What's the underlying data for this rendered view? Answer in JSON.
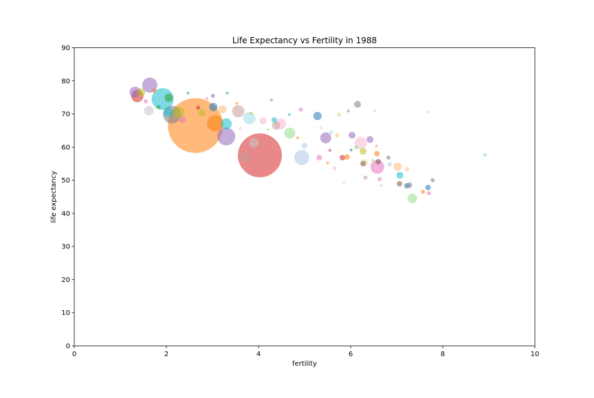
{
  "chart_data": {
    "type": "scatter",
    "title": "Life Expectancy vs Fertility in 1988",
    "xlabel": "fertility",
    "ylabel": "life expectancy",
    "xlim": [
      0,
      10
    ],
    "ylim": [
      0,
      90
    ],
    "xticks": [
      "0",
      "2",
      "4",
      "6",
      "8",
      "10"
    ],
    "yticks": [
      "0",
      "10",
      "20",
      "30",
      "40",
      "50",
      "60",
      "70",
      "80",
      "90"
    ],
    "grid": false,
    "legend": "none",
    "colors": [
      "#1f77b4",
      "#ff7f0e",
      "#2ca02c",
      "#d62728",
      "#9467bd",
      "#8c564b",
      "#e377c2",
      "#7f7f7f",
      "#bcbd22",
      "#17becf"
    ],
    "points": [
      {
        "x": 2.63,
        "y": 66.5,
        "size": 40,
        "color": "#ff7f0e"
      },
      {
        "x": 4.03,
        "y": 57.5,
        "size": 32,
        "color": "#d62728"
      },
      {
        "x": 1.92,
        "y": 74.5,
        "size": 16,
        "color": "#17becf"
      },
      {
        "x": 3.3,
        "y": 63.2,
        "size": 13,
        "color": "#9467bd"
      },
      {
        "x": 2.12,
        "y": 69.8,
        "size": 13,
        "color": "#7f7f7f"
      },
      {
        "x": 3.06,
        "y": 67.2,
        "size": 12,
        "color": "#ff7f0e"
      },
      {
        "x": 4.94,
        "y": 56.8,
        "size": 11,
        "color": "#aec7e8"
      },
      {
        "x": 6.58,
        "y": 54.0,
        "size": 10,
        "color": "#e377c2"
      },
      {
        "x": 1.64,
        "y": 78.7,
        "size": 11,
        "color": "#9467bd"
      },
      {
        "x": 6.22,
        "y": 61.2,
        "size": 9,
        "color": "#f7b6d2"
      },
      {
        "x": 1.37,
        "y": 75.4,
        "size": 9,
        "color": "#d62728"
      },
      {
        "x": 3.8,
        "y": 68.7,
        "size": 9,
        "color": "#9edae5"
      },
      {
        "x": 3.56,
        "y": 70.8,
        "size": 9,
        "color": "#c49c94"
      },
      {
        "x": 1.32,
        "y": 76.6,
        "size": 8,
        "color": "#9467bd"
      },
      {
        "x": 2.27,
        "y": 70.5,
        "size": 8,
        "color": "#bcbd22"
      },
      {
        "x": 3.3,
        "y": 67.0,
        "size": 8,
        "color": "#17becf"
      },
      {
        "x": 4.68,
        "y": 64.2,
        "size": 8,
        "color": "#98df8a"
      },
      {
        "x": 4.48,
        "y": 67.0,
        "size": 8,
        "color": "#f7b6d2"
      },
      {
        "x": 5.46,
        "y": 62.8,
        "size": 8,
        "color": "#9467bd"
      },
      {
        "x": 7.34,
        "y": 44.5,
        "size": 7,
        "color": "#98df8a"
      },
      {
        "x": 2.04,
        "y": 70.5,
        "size": 7,
        "color": "#17becf"
      },
      {
        "x": 1.62,
        "y": 71.0,
        "size": 7,
        "color": "#c7c7c7"
      },
      {
        "x": 3.9,
        "y": 61.3,
        "size": 7,
        "color": "#c7c7c7"
      },
      {
        "x": 3.7,
        "y": 57.0,
        "size": 7,
        "color": "#c49c94"
      },
      {
        "x": 3.22,
        "y": 71.4,
        "size": 6,
        "color": "#ffbb78"
      },
      {
        "x": 7.02,
        "y": 54.1,
        "size": 6,
        "color": "#ffbb78"
      },
      {
        "x": 5.28,
        "y": 69.4,
        "size": 6,
        "color": "#1f77b4"
      },
      {
        "x": 3.02,
        "y": 72.1,
        "size": 6,
        "color": "#1f77b4"
      },
      {
        "x": 2.05,
        "y": 74.9,
        "size": 6,
        "color": "#2ca02c"
      },
      {
        "x": 4.38,
        "y": 66.5,
        "size": 6,
        "color": "#c49c94"
      },
      {
        "x": 1.45,
        "y": 76.5,
        "size": 6,
        "color": "#bcbd22"
      },
      {
        "x": 2.77,
        "y": 70.3,
        "size": 5,
        "color": "#bcbd22"
      },
      {
        "x": 6.3,
        "y": 55.3,
        "size": 5,
        "color": "#dbdb8d"
      },
      {
        "x": 6.42,
        "y": 62.3,
        "size": 5,
        "color": "#9467bd"
      },
      {
        "x": 6.27,
        "y": 58.7,
        "size": 5,
        "color": "#bcbd22"
      },
      {
        "x": 4.1,
        "y": 67.9,
        "size": 5,
        "color": "#f7b6d2"
      },
      {
        "x": 6.15,
        "y": 72.9,
        "size": 5,
        "color": "#7f7f7f"
      },
      {
        "x": 2.35,
        "y": 68.3,
        "size": 5,
        "color": "#e377c2"
      },
      {
        "x": 6.03,
        "y": 63.6,
        "size": 5,
        "color": "#9467bd"
      },
      {
        "x": 7.07,
        "y": 51.5,
        "size": 5,
        "color": "#17becf"
      },
      {
        "x": 7.68,
        "y": 47.8,
        "size": 4,
        "color": "#1f77b4"
      },
      {
        "x": 4.34,
        "y": 68.2,
        "size": 4,
        "color": "#17becf"
      },
      {
        "x": 6.57,
        "y": 58.0,
        "size": 4,
        "color": "#ff7f0e"
      },
      {
        "x": 5.82,
        "y": 56.8,
        "size": 4,
        "color": "#d62728"
      },
      {
        "x": 5.92,
        "y": 57.0,
        "size": 4,
        "color": "#ff7f0e"
      },
      {
        "x": 5.0,
        "y": 60.4,
        "size": 4,
        "color": "#aec7e8"
      },
      {
        "x": 5.32,
        "y": 56.8,
        "size": 4,
        "color": "#e377c2"
      },
      {
        "x": 7.22,
        "y": 48.3,
        "size": 4,
        "color": "#1f77b4"
      },
      {
        "x": 7.28,
        "y": 48.5,
        "size": 4,
        "color": "#7f7f7f"
      },
      {
        "x": 7.06,
        "y": 48.9,
        "size": 4,
        "color": "#8c564b"
      },
      {
        "x": 6.6,
        "y": 55.6,
        "size": 4,
        "color": "#8c564b"
      },
      {
        "x": 6.27,
        "y": 55.0,
        "size": 4,
        "color": "#8c564b"
      },
      {
        "x": 6.82,
        "y": 56.8,
        "size": 3,
        "color": "#7f7f7f"
      },
      {
        "x": 7.7,
        "y": 46.1,
        "size": 3,
        "color": "#e377c2"
      },
      {
        "x": 7.78,
        "y": 50.0,
        "size": 3,
        "color": "#7f7f7f"
      },
      {
        "x": 7.57,
        "y": 46.5,
        "size": 3,
        "color": "#ff7f0e"
      },
      {
        "x": 7.23,
        "y": 53.3,
        "size": 3,
        "color": "#ffbb78"
      },
      {
        "x": 6.32,
        "y": 50.8,
        "size": 3,
        "color": "#c49c94"
      },
      {
        "x": 8.92,
        "y": 57.6,
        "size": 3,
        "color": "#9edae5"
      },
      {
        "x": 5.75,
        "y": 69.8,
        "size": 3,
        "color": "#dbdb8d"
      },
      {
        "x": 5.58,
        "y": 64.5,
        "size": 3,
        "color": "#9edae5"
      },
      {
        "x": 6.63,
        "y": 50.3,
        "size": 3,
        "color": "#e377c2"
      },
      {
        "x": 6.12,
        "y": 59.9,
        "size": 3,
        "color": "#98df8a"
      },
      {
        "x": 5.71,
        "y": 63.5,
        "size": 3,
        "color": "#ffbb78"
      },
      {
        "x": 6.85,
        "y": 54.8,
        "size": 3,
        "color": "#aec7e8"
      },
      {
        "x": 5.65,
        "y": 53.6,
        "size": 3,
        "color": "#f7b6d2"
      },
      {
        "x": 1.83,
        "y": 72.1,
        "size": 3,
        "color": "#2ca02c"
      },
      {
        "x": 2.42,
        "y": 72.7,
        "size": 3,
        "color": "#ffbb78"
      },
      {
        "x": 3.01,
        "y": 75.5,
        "size": 3,
        "color": "#9467bd"
      },
      {
        "x": 2.69,
        "y": 71.9,
        "size": 3,
        "color": "#d62728"
      },
      {
        "x": 1.74,
        "y": 77.0,
        "size": 3,
        "color": "#ff7f0e"
      },
      {
        "x": 1.55,
        "y": 73.8,
        "size": 3,
        "color": "#e377c2"
      },
      {
        "x": 4.92,
        "y": 71.3,
        "size": 3,
        "color": "#e377c2"
      },
      {
        "x": 4.67,
        "y": 69.8,
        "size": 2,
        "color": "#17becf"
      },
      {
        "x": 4.85,
        "y": 62.8,
        "size": 2,
        "color": "#ff7f0e"
      },
      {
        "x": 5.36,
        "y": 65.8,
        "size": 2,
        "color": "#dbdb8d"
      },
      {
        "x": 4.28,
        "y": 74.2,
        "size": 2,
        "color": "#7f7f7f"
      },
      {
        "x": 3.32,
        "y": 76.3,
        "size": 2,
        "color": "#2ca02c"
      },
      {
        "x": 2.47,
        "y": 76.3,
        "size": 2,
        "color": "#2ca02c"
      },
      {
        "x": 3.53,
        "y": 73.2,
        "size": 2,
        "color": "#ff7f0e"
      },
      {
        "x": 3.84,
        "y": 70.2,
        "size": 2,
        "color": "#bcbd22"
      },
      {
        "x": 4.21,
        "y": 65.3,
        "size": 2,
        "color": "#98df8a"
      },
      {
        "x": 5.85,
        "y": 49.2,
        "size": 2,
        "color": "#dbdb8d"
      },
      {
        "x": 6.52,
        "y": 70.9,
        "size": 2,
        "color": "#9edae5"
      },
      {
        "x": 7.69,
        "y": 70.5,
        "size": 2,
        "color": "#f7b6d2"
      },
      {
        "x": 5.55,
        "y": 59.0,
        "size": 2,
        "color": "#d62728"
      },
      {
        "x": 6.67,
        "y": 48.4,
        "size": 2,
        "color": "#c7c7c7"
      },
      {
        "x": 6.56,
        "y": 60.3,
        "size": 2,
        "color": "#c49c94"
      },
      {
        "x": 6.48,
        "y": 56.0,
        "size": 2,
        "color": "#98df8a"
      },
      {
        "x": 2.88,
        "y": 74.6,
        "size": 2,
        "color": "#e377c2"
      },
      {
        "x": 3.11,
        "y": 68.8,
        "size": 2,
        "color": "#bcbd22"
      },
      {
        "x": 3.6,
        "y": 65.7,
        "size": 2,
        "color": "#f7b6d2"
      },
      {
        "x": 5.5,
        "y": 55.2,
        "size": 2,
        "color": "#ff7f0e"
      },
      {
        "x": 6.01,
        "y": 59.1,
        "size": 2,
        "color": "#1f77b4"
      },
      {
        "x": 5.95,
        "y": 70.9,
        "size": 2,
        "color": "#9467bd"
      }
    ]
  }
}
